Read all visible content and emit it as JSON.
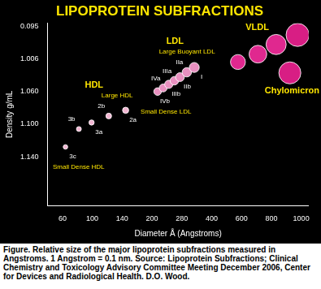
{
  "chart_data": {
    "type": "scatter",
    "title": "LIPOPROTEIN SUBFRACTIONS",
    "x_label": "Diameter Å (Angstroms)",
    "y_label": "Density g/mL",
    "xlim": [
      40,
      1050
    ],
    "xticks": [
      60,
      100,
      140,
      200,
      280,
      400,
      600,
      800,
      1000
    ],
    "ylim": [
      1.2,
      0
    ],
    "yticks": [
      0.095,
      1.006,
      {
        "value": 1.06,
        "label": "1.060"
      },
      {
        "value": 1.1,
        "label": "1.100"
      },
      {
        "value": 1.14,
        "label": "1.140"
      }
    ],
    "grid": false,
    "series": [
      {
        "name": "HDL",
        "color": "#f2b6d2",
        "marker": "circle",
        "groups": [
          {
            "name": "Small Dense HDL",
            "points": [
              {
                "label": "3c",
                "x": 64,
                "y": 1.128
              },
              {
                "label": "3b",
                "x": 82,
                "y": 1.106
              },
              {
                "label": "3a",
                "x": 99,
                "y": 1.098
              }
            ]
          },
          {
            "name": "Large HDL",
            "points": [
              {
                "label": "2b",
                "x": 122,
                "y": 1.09
              },
              {
                "label": "2a",
                "x": 147,
                "y": 1.083
              }
            ]
          }
        ]
      },
      {
        "name": "LDL",
        "color": "#e890c0",
        "marker": "circle",
        "groups": [
          {
            "name": "Small Dense LDL",
            "points": [
              {
                "label": "IVb",
                "x": 215,
                "y": 1.06
              },
              {
                "label": "IVa",
                "x": 230,
                "y": 1.054
              },
              {
                "label": "IIIb",
                "x": 245,
                "y": 1.048
              },
              {
                "label": "IIIa",
                "x": 260,
                "y": 1.042
              }
            ]
          },
          {
            "name": "Large Buoyant LDL",
            "points": [
              {
                "label": "IIb",
                "x": 275,
                "y": 1.036
              },
              {
                "label": "IIa",
                "x": 300,
                "y": 1.028
              },
              {
                "label": "I",
                "x": 330,
                "y": 1.02
              }
            ]
          }
        ]
      },
      {
        "name": "VLDL",
        "color": "#e0288f",
        "marker": "circle",
        "points": [
          {
            "x": 576,
            "y": 1.011
          },
          {
            "x": 710,
            "y": 0.87
          },
          {
            "x": 832,
            "y": 0.6
          }
        ]
      },
      {
        "name": "Chylomicron",
        "color": "#d81e84",
        "marker": "circle",
        "points": [
          {
            "x": 976,
            "y": 0.332
          },
          {
            "x": 924,
            "y": 1.029
          }
        ]
      }
    ],
    "caption": "Figure. Relative size of the major lipoprotein subfractions measured in Angstroms. 1 Angstrom = 0.1 nm. Source: Lipoprotein Subfractions; Clinical Chemistry and Toxicology Advisory Committee Meeting December 2006, Center for Devices and Radiological Health. D.O. Wood."
  }
}
